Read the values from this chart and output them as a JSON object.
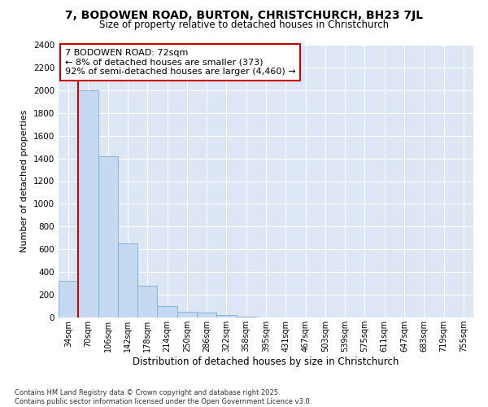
{
  "title1": "7, BODOWEN ROAD, BURTON, CHRISTCHURCH, BH23 7JL",
  "title2": "Size of property relative to detached houses in Christchurch",
  "xlabel": "Distribution of detached houses by size in Christchurch",
  "ylabel": "Number of detached properties",
  "categories": [
    "34sqm",
    "70sqm",
    "106sqm",
    "142sqm",
    "178sqm",
    "214sqm",
    "250sqm",
    "286sqm",
    "322sqm",
    "358sqm",
    "395sqm",
    "431sqm",
    "467sqm",
    "503sqm",
    "539sqm",
    "575sqm",
    "611sqm",
    "647sqm",
    "683sqm",
    "719sqm",
    "755sqm"
  ],
  "values": [
    325,
    2000,
    1415,
    655,
    280,
    100,
    47,
    40,
    22,
    10,
    0,
    0,
    0,
    0,
    0,
    0,
    0,
    0,
    0,
    0,
    0
  ],
  "bar_color": "#c5d9f0",
  "bar_edge_color": "#7aaadb",
  "vline_color": "#cc0000",
  "annotation_text": "7 BODOWEN ROAD: 72sqm\n← 8% of detached houses are smaller (373)\n92% of semi-detached houses are larger (4,460) →",
  "annotation_box_color": "#ffffff",
  "annotation_box_edge": "#cc0000",
  "ylim": [
    0,
    2400
  ],
  "yticks": [
    0,
    200,
    400,
    600,
    800,
    1000,
    1200,
    1400,
    1600,
    1800,
    2000,
    2200,
    2400
  ],
  "background_color": "#dce6f5",
  "footnote": "Contains HM Land Registry data © Crown copyright and database right 2025.\nContains public sector information licensed under the Open Government Licence v3.0."
}
